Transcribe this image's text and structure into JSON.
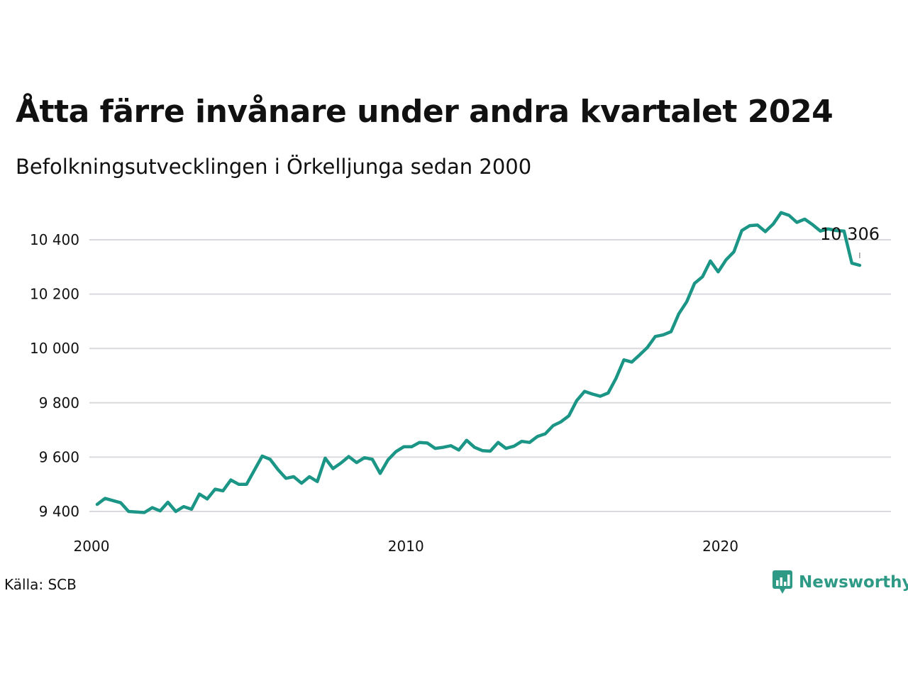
{
  "title": "Åtta färre invånare under andra kvartalet 2024",
  "subtitle": "Befolkningsutvecklingen i Örkelljunga sedan 2000",
  "source": "Källa: SCB",
  "brand": {
    "name": "Newsworthy",
    "color": "#2e9a86",
    "icon": "bar-chart-speech-bubble-icon"
  },
  "colors": {
    "line": "#1b9585",
    "grid": "#d9d9de",
    "text": "#111111"
  },
  "chart_data": {
    "type": "line",
    "title": "Åtta färre invånare under andra kvartalet 2024",
    "subtitle": "Befolkningsutvecklingen i Örkelljunga sedan 2000",
    "xlabel": "",
    "ylabel": "",
    "grid": true,
    "xlim": [
      2000,
      2024.5
    ],
    "ylim": [
      9360,
      10520
    ],
    "x_ticks": [
      2000,
      2010,
      2020
    ],
    "x_tick_labels": [
      "2000",
      "2010",
      "2020"
    ],
    "y_ticks": [
      9400,
      9600,
      9800,
      10000,
      10200,
      10400
    ],
    "y_tick_labels": [
      "9 400",
      "9 600",
      "9 800",
      "10 000",
      "10 200",
      "10 400"
    ],
    "end_label": "10 306",
    "series": [
      {
        "x": [
          2000.0,
          2000.25,
          2000.5,
          2000.75,
          2001.0,
          2001.25,
          2001.5,
          2001.75,
          2002.0,
          2002.25,
          2002.5,
          2002.75,
          2003.0,
          2003.25,
          2003.5,
          2003.75,
          2004.0,
          2004.25,
          2004.5,
          2004.75,
          2005.0,
          2005.25,
          2005.5,
          2005.75,
          2006.0,
          2006.25,
          2006.5,
          2006.75,
          2007.0,
          2007.25,
          2007.5,
          2007.75,
          2008.0,
          2008.25,
          2008.5,
          2008.75,
          2009.0,
          2009.25,
          2009.5,
          2009.75,
          2010.0,
          2010.25,
          2010.5,
          2010.75,
          2011.0,
          2011.25,
          2011.5,
          2011.75,
          2012.0,
          2012.25,
          2012.5,
          2012.75,
          2013.0,
          2013.25,
          2013.5,
          2013.75,
          2014.0,
          2014.25,
          2014.5,
          2014.75,
          2015.0,
          2015.25,
          2015.5,
          2015.75,
          2016.0,
          2016.25,
          2016.5,
          2016.75,
          2017.0,
          2017.25,
          2017.5,
          2017.75,
          2018.0,
          2018.25,
          2018.5,
          2018.75,
          2019.0,
          2019.25,
          2019.5,
          2019.75,
          2020.0,
          2020.25,
          2020.5,
          2020.75,
          2021.0,
          2021.25,
          2021.5,
          2021.75,
          2022.0,
          2022.25,
          2022.5,
          2022.75,
          2023.0,
          2023.25,
          2023.5,
          2023.75,
          2024.0,
          2024.25
        ],
        "values": [
          9426,
          9448,
          9440,
          9432,
          9400,
          9398,
          9396,
          9414,
          9402,
          9434,
          9400,
          9418,
          9408,
          9464,
          9446,
          9482,
          9476,
          9516,
          9500,
          9500,
          9552,
          9604,
          9592,
          9554,
          9522,
          9528,
          9504,
          9528,
          9510,
          9596,
          9558,
          9578,
          9602,
          9580,
          9598,
          9592,
          9540,
          9590,
          9620,
          9638,
          9638,
          9654,
          9652,
          9632,
          9636,
          9642,
          9626,
          9662,
          9636,
          9624,
          9622,
          9654,
          9632,
          9640,
          9658,
          9654,
          9676,
          9686,
          9716,
          9730,
          9752,
          9808,
          9842,
          9832,
          9824,
          9836,
          9890,
          9958,
          9950,
          9976,
          10004,
          10044,
          10050,
          10062,
          10128,
          10172,
          10240,
          10264,
          10322,
          10282,
          10326,
          10356,
          10434,
          10452,
          10454,
          10430,
          10458,
          10500,
          10490,
          10464,
          10476,
          10456,
          10432,
          10440,
          10434,
          10432,
          10314,
          10306
        ]
      }
    ]
  }
}
